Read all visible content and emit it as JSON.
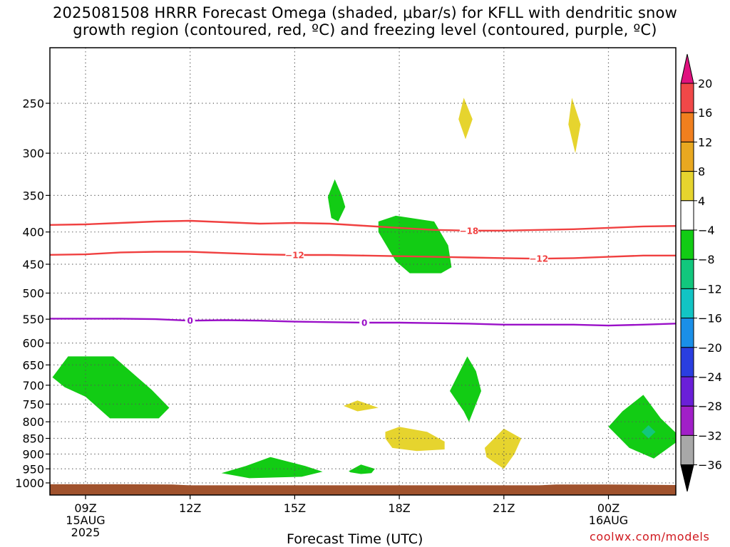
{
  "title_lines": [
    "2025081508 HRRR Forecast Omega (shaded, μbar/s) for KFLL with dendritic snow",
    "growth region (contoured, red, ºC) and freezing level (contoured, purple, ºC)"
  ],
  "credit": "coolwx.com/models",
  "chart_data": {
    "type": "time-height cross section",
    "xlabel": "Forecast Time (UTC)",
    "xlim_hours": [
      7.7,
      26.3
    ],
    "x_ticks": [
      {
        "hour": 9,
        "lines": [
          "09Z",
          "15AUG",
          "2025"
        ]
      },
      {
        "hour": 12,
        "lines": [
          "12Z"
        ]
      },
      {
        "hour": 15,
        "lines": [
          "15Z"
        ]
      },
      {
        "hour": 18,
        "lines": [
          "18Z"
        ]
      },
      {
        "hour": 21,
        "lines": [
          "21Z"
        ]
      },
      {
        "hour": 24,
        "lines": [
          "00Z",
          "16AUG"
        ]
      }
    ],
    "y_ticks_hPa": [
      250,
      300,
      350,
      400,
      450,
      500,
      550,
      600,
      650,
      700,
      750,
      800,
      850,
      900,
      950,
      1000
    ],
    "ylim_hPa": [
      200,
      1020
    ],
    "y_scale": "log-pressure",
    "grid": "dotted",
    "colorbar": {
      "labels": [
        "20",
        "16",
        "12",
        "8",
        "4",
        "−4",
        "−8",
        "−12",
        "−16",
        "−20",
        "−24",
        "−28",
        "−32",
        "−36"
      ],
      "bins": [
        {
          "from": 20,
          "to": 24,
          "color": "#e0117f"
        },
        {
          "from": 16,
          "to": 20,
          "color": "#f04848"
        },
        {
          "from": 12,
          "to": 16,
          "color": "#f07f1e"
        },
        {
          "from": 8,
          "to": 12,
          "color": "#e9a820"
        },
        {
          "from": 4,
          "to": 8,
          "color": "#e6d42e"
        },
        {
          "from": -4,
          "to": 4,
          "color": "#ffffff"
        },
        {
          "from": -8,
          "to": -4,
          "color": "#12cc14"
        },
        {
          "from": -12,
          "to": -8,
          "color": "#12c77d"
        },
        {
          "from": -16,
          "to": -12,
          "color": "#12c4c4"
        },
        {
          "from": -20,
          "to": -16,
          "color": "#1a8fe8"
        },
        {
          "from": -24,
          "to": -20,
          "color": "#2a3ee0"
        },
        {
          "from": -28,
          "to": -24,
          "color": "#6a1fd8"
        },
        {
          "from": -32,
          "to": -28,
          "color": "#a11fc8"
        },
        {
          "from": -36,
          "to": -32,
          "color": "#a8a8a8"
        },
        {
          "from": -40,
          "to": -36,
          "color": "#000000"
        }
      ]
    },
    "contours": [
      {
        "value": "−18",
        "color": "#f04040",
        "labels_at_hours": [
          20.0
        ],
        "points": [
          [
            7.7,
            390
          ],
          [
            9,
            389
          ],
          [
            10,
            387
          ],
          [
            11,
            385
          ],
          [
            12,
            384
          ],
          [
            13,
            386
          ],
          [
            14,
            388
          ],
          [
            15,
            387
          ],
          [
            16,
            388
          ],
          [
            17,
            391
          ],
          [
            18,
            394
          ],
          [
            19,
            397
          ],
          [
            20,
            398
          ],
          [
            21,
            398
          ],
          [
            22,
            397
          ],
          [
            23,
            396
          ],
          [
            24,
            394
          ],
          [
            25,
            392
          ],
          [
            26.3,
            391
          ]
        ]
      },
      {
        "value": "−12",
        "color": "#f04040",
        "labels_at_hours": [
          15.0,
          22.0
        ],
        "points": [
          [
            7.7,
            435
          ],
          [
            9,
            434
          ],
          [
            10,
            431
          ],
          [
            11,
            430
          ],
          [
            12,
            430
          ],
          [
            13,
            432
          ],
          [
            14,
            434
          ],
          [
            15,
            435
          ],
          [
            16,
            435
          ],
          [
            17,
            436
          ],
          [
            18,
            437
          ],
          [
            19,
            438
          ],
          [
            20,
            439
          ],
          [
            21,
            440
          ],
          [
            22,
            441
          ],
          [
            23,
            440
          ],
          [
            24,
            438
          ],
          [
            25,
            436
          ],
          [
            26.3,
            436
          ]
        ]
      },
      {
        "value": "0",
        "color": "#9a10c8",
        "labels_at_hours": [
          12.0,
          17.0
        ],
        "points": [
          [
            7.7,
            549
          ],
          [
            9,
            549
          ],
          [
            10,
            549
          ],
          [
            11,
            550
          ],
          [
            12,
            553
          ],
          [
            13,
            552
          ],
          [
            14,
            553
          ],
          [
            15,
            555
          ],
          [
            16,
            556
          ],
          [
            17,
            557
          ],
          [
            18,
            557
          ],
          [
            19,
            558
          ],
          [
            20,
            559
          ],
          [
            21,
            561
          ],
          [
            22,
            561
          ],
          [
            23,
            561
          ],
          [
            24,
            563
          ],
          [
            25,
            561
          ],
          [
            26.3,
            558
          ]
        ]
      }
    ],
    "shaded_regions": [
      {
        "bin": "−8 to −4",
        "color": "#12cc14",
        "points": [
          [
            8.05,
            680
          ],
          [
            8.5,
            630
          ],
          [
            9.8,
            630
          ],
          [
            10.9,
            712
          ],
          [
            11.4,
            760
          ],
          [
            11.1,
            790
          ],
          [
            9.7,
            790
          ],
          [
            9.0,
            730
          ],
          [
            8.4,
            705
          ]
        ]
      },
      {
        "bin": "−8 to −4",
        "color": "#12cc14",
        "points": [
          [
            12.9,
            965
          ],
          [
            13.6,
            940
          ],
          [
            14.3,
            910
          ],
          [
            15.3,
            940
          ],
          [
            15.8,
            960
          ],
          [
            15.2,
            978
          ],
          [
            13.7,
            983
          ]
        ]
      },
      {
        "bin": "−8 to −4",
        "color": "#12cc14",
        "points": [
          [
            16.15,
            330
          ],
          [
            16.35,
            350
          ],
          [
            16.45,
            365
          ],
          [
            16.25,
            385
          ],
          [
            16.05,
            380
          ],
          [
            15.95,
            352
          ]
        ]
      },
      {
        "bin": "−8 to −4",
        "color": "#12cc14",
        "points": [
          [
            17.4,
            385
          ],
          [
            17.9,
            377
          ],
          [
            19.0,
            385
          ],
          [
            19.4,
            420
          ],
          [
            19.5,
            455
          ],
          [
            19.2,
            465
          ],
          [
            18.3,
            465
          ],
          [
            17.9,
            445
          ],
          [
            17.4,
            400
          ]
        ]
      },
      {
        "bin": "−8 to −4",
        "color": "#12cc14",
        "points": [
          [
            19.95,
            630
          ],
          [
            20.2,
            665
          ],
          [
            20.35,
            715
          ],
          [
            20.0,
            800
          ],
          [
            19.85,
            770
          ],
          [
            19.45,
            715
          ]
        ]
      },
      {
        "bin": "−8 to −4",
        "color": "#12cc14",
        "points": [
          [
            16.55,
            958
          ],
          [
            16.9,
            935
          ],
          [
            17.3,
            950
          ],
          [
            17.2,
            965
          ],
          [
            16.9,
            968
          ],
          [
            16.6,
            962
          ]
        ]
      },
      {
        "bin": "−8 to −4",
        "color": "#12cc14",
        "points": [
          [
            24.0,
            815
          ],
          [
            24.4,
            770
          ],
          [
            25.0,
            725
          ],
          [
            25.5,
            790
          ],
          [
            26.1,
            850
          ],
          [
            25.3,
            915
          ],
          [
            24.6,
            880
          ]
        ]
      },
      {
        "bin": "−12 to −8",
        "color": "#12c77d",
        "points": [
          [
            25.15,
            810
          ],
          [
            25.35,
            830
          ],
          [
            25.15,
            850
          ],
          [
            24.95,
            830
          ]
        ]
      },
      {
        "bin": "4 to 8",
        "color": "#e6d42e",
        "points": [
          [
            19.85,
            245
          ],
          [
            20.1,
            265
          ],
          [
            19.9,
            285
          ],
          [
            19.7,
            265
          ]
        ]
      },
      {
        "bin": "4 to 8",
        "color": "#e6d42e",
        "points": [
          [
            22.95,
            245
          ],
          [
            23.2,
            270
          ],
          [
            23.05,
            300
          ],
          [
            22.85,
            270
          ]
        ]
      },
      {
        "bin": "4 to 8",
        "color": "#e6d42e",
        "points": [
          [
            16.4,
            755
          ],
          [
            16.8,
            740
          ],
          [
            17.4,
            760
          ],
          [
            16.8,
            770
          ]
        ]
      },
      {
        "bin": "4 to 8",
        "color": "#e6d42e",
        "points": [
          [
            17.6,
            830
          ],
          [
            18.0,
            815
          ],
          [
            18.8,
            830
          ],
          [
            19.3,
            860
          ],
          [
            19.3,
            885
          ],
          [
            18.5,
            890
          ],
          [
            17.8,
            880
          ],
          [
            17.6,
            850
          ]
        ]
      },
      {
        "bin": "4 to 8",
        "color": "#e6d42e",
        "points": [
          [
            20.45,
            880
          ],
          [
            21.0,
            820
          ],
          [
            21.5,
            850
          ],
          [
            21.3,
            900
          ],
          [
            21.0,
            950
          ],
          [
            20.5,
            910
          ]
        ]
      }
    ],
    "terrain": {
      "color": "#a0522d",
      "bottom_hPa": 1020,
      "points": [
        [
          7.7,
          1005
        ],
        [
          10,
          1005
        ],
        [
          11.5,
          1006
        ],
        [
          12,
          1009
        ],
        [
          22,
          1009
        ],
        [
          22.5,
          1006
        ],
        [
          24,
          1006
        ],
        [
          26.3,
          1008
        ]
      ]
    }
  }
}
